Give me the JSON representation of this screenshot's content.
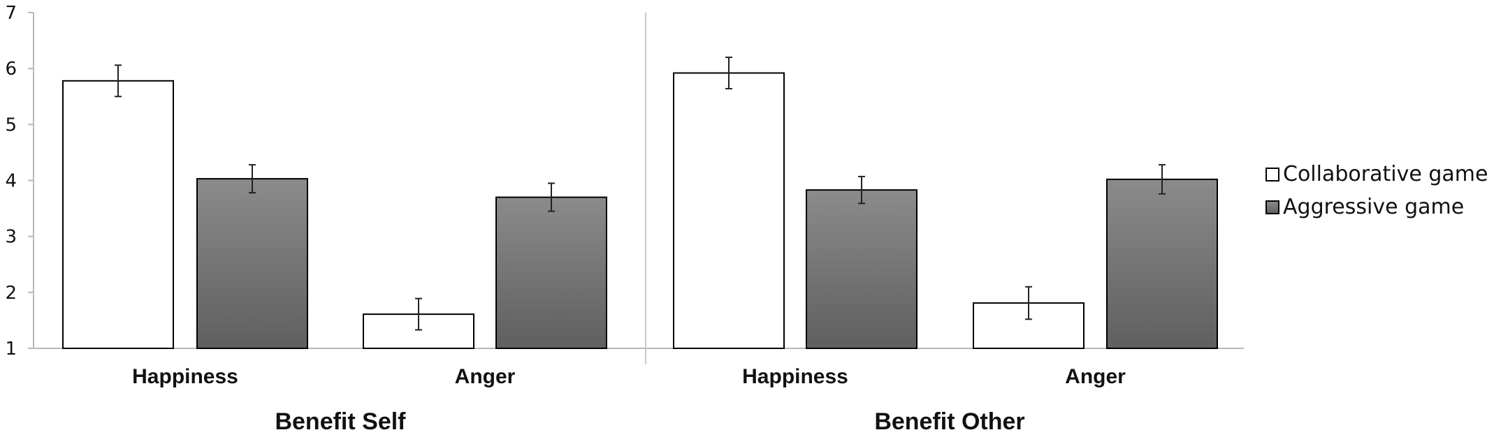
{
  "chart_data": {
    "type": "bar",
    "ylim": [
      1,
      7
    ],
    "yticks": [
      1,
      2,
      3,
      4,
      5,
      6,
      7
    ],
    "grid": false,
    "legend_position": "right",
    "groups": [
      {
        "label": "Benefit Self",
        "categories": [
          "Happiness",
          "Anger"
        ],
        "series": [
          {
            "name": "Collaborative game",
            "color": "#ffffff",
            "values": [
              5.78,
              1.61
            ],
            "error": [
              0.28,
              0.28
            ]
          },
          {
            "name": "Aggressive game",
            "color": "#777777",
            "values": [
              4.03,
              3.7
            ],
            "error": [
              0.25,
              0.25
            ]
          }
        ]
      },
      {
        "label": "Benefit Other",
        "categories": [
          "Happiness",
          "Anger"
        ],
        "series": [
          {
            "name": "Collaborative game",
            "color": "#ffffff",
            "values": [
              5.92,
              1.81
            ],
            "error": [
              0.28,
              0.29
            ]
          },
          {
            "name": "Aggressive game",
            "color": "#777777",
            "values": [
              3.83,
              4.02
            ],
            "error": [
              0.24,
              0.26
            ]
          }
        ]
      }
    ]
  }
}
